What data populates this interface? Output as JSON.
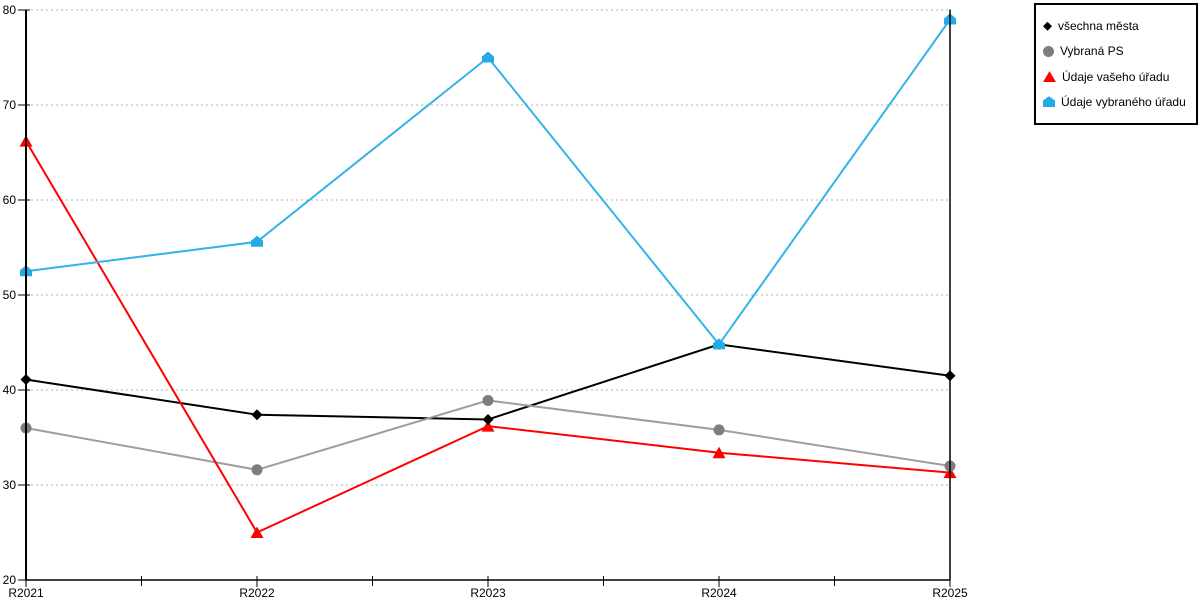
{
  "chart_data": {
    "type": "line",
    "title": "",
    "xlabel": "",
    "ylabel": "",
    "categories": [
      "R2021",
      "R2022",
      "R2023",
      "R2024",
      "R2025"
    ],
    "series": [
      {
        "name": "všechna města",
        "marker": "diamond",
        "color": "#000000",
        "line_color": "#000000",
        "values": [
          41.1,
          37.4,
          36.9,
          44.8,
          41.5
        ]
      },
      {
        "name": "Vybraná PS",
        "marker": "circle",
        "color": "#7d7d7d",
        "line_color": "#9e9e9e",
        "values": [
          36.0,
          31.6,
          38.9,
          35.8,
          32.0
        ]
      },
      {
        "name": "Údaje vašeho úřadu",
        "marker": "triangle",
        "color": "#ff0000",
        "line_color": "#ff0000",
        "values": [
          66.2,
          25.0,
          36.2,
          33.4,
          31.3
        ]
      },
      {
        "name": "Údaje vybraného úřadu",
        "marker": "house",
        "color": "#22abe7",
        "line_color": "#33b3e8",
        "values": [
          52.5,
          55.6,
          75.0,
          44.8,
          79.0
        ]
      }
    ],
    "ylim": [
      20,
      80
    ],
    "yticks": [
      20,
      30,
      40,
      50,
      60,
      70,
      80
    ],
    "grid": "horizontal-dotted",
    "grid_color": "#b3b3b3",
    "axis_color": "#000000",
    "legend_position": "top-right"
  }
}
